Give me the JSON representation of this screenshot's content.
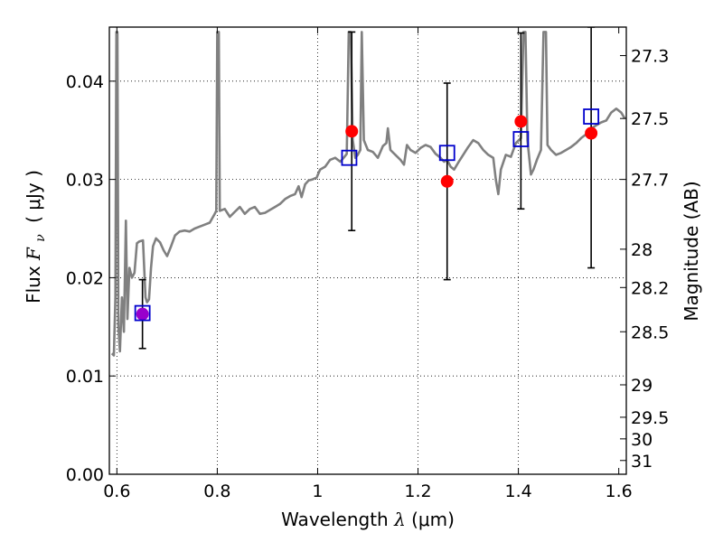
{
  "chart_data": {
    "type": "scatter",
    "xlabel_prefix": "Wavelength",
    "xlabel_symbol": "λ",
    "xlabel_unit": "(μm)",
    "ylabel_prefix": "Flux",
    "ylabel_symbol": "F",
    "ylabel_subscript": "ν",
    "ylabel_unit": "( μJy )",
    "y2label": "Magnitude (AB)",
    "xlim": [
      0.585,
      1.615
    ],
    "ylim": [
      0.0,
      0.0455
    ],
    "x_ticks": [
      0.6,
      0.8,
      1.0,
      1.2,
      1.4,
      1.6
    ],
    "x_tick_labels": [
      "0.6",
      "0.8",
      "1",
      "1.2",
      "1.4",
      "1.6"
    ],
    "y_ticks": [
      0.0,
      0.01,
      0.02,
      0.03,
      0.04
    ],
    "y_tick_labels": [
      "0.00",
      "0.01",
      "0.02",
      "0.03",
      "0.04"
    ],
    "y2_ticks": [
      {
        "flux": 0.0426,
        "label": "27.3"
      },
      {
        "flux": 0.0362,
        "label": "27.5"
      },
      {
        "flux": 0.03,
        "label": "27.7"
      },
      {
        "flux": 0.0229,
        "label": "28"
      },
      {
        "flux": 0.019,
        "label": "28.2"
      },
      {
        "flux": 0.0145,
        "label": "28.5"
      },
      {
        "flux": 0.0091,
        "label": "29"
      },
      {
        "flux": 0.0058,
        "label": "29.5"
      },
      {
        "flux": 0.0036,
        "label": "30"
      },
      {
        "flux": 0.0014,
        "label": "31"
      }
    ],
    "grid": true,
    "colors": {
      "spectrum": "#808080",
      "observed": "#ff0000",
      "model": "#0000cc",
      "errorbar": "#000000",
      "special_point": "#9900cc"
    },
    "series": [
      {
        "name": "model spectrum",
        "kind": "line",
        "points": [
          [
            0.59,
            0.0123
          ],
          [
            0.594,
            0.0121
          ],
          [
            0.597,
            0.018
          ],
          [
            0.599,
            0.045
          ],
          [
            0.601,
            0.045
          ],
          [
            0.603,
            0.015
          ],
          [
            0.606,
            0.0125
          ],
          [
            0.61,
            0.018
          ],
          [
            0.614,
            0.0145
          ],
          [
            0.618,
            0.0258
          ],
          [
            0.621,
            0.0158
          ],
          [
            0.625,
            0.021
          ],
          [
            0.63,
            0.02
          ],
          [
            0.635,
            0.0205
          ],
          [
            0.64,
            0.0235
          ],
          [
            0.645,
            0.0237
          ],
          [
            0.652,
            0.0238
          ],
          [
            0.657,
            0.018
          ],
          [
            0.66,
            0.0175
          ],
          [
            0.664,
            0.0178
          ],
          [
            0.668,
            0.021
          ],
          [
            0.672,
            0.0232
          ],
          [
            0.678,
            0.024
          ],
          [
            0.686,
            0.0236
          ],
          [
            0.693,
            0.0228
          ],
          [
            0.7,
            0.0222
          ],
          [
            0.708,
            0.0232
          ],
          [
            0.716,
            0.0243
          ],
          [
            0.725,
            0.0247
          ],
          [
            0.735,
            0.0248
          ],
          [
            0.745,
            0.0247
          ],
          [
            0.755,
            0.025
          ],
          [
            0.765,
            0.0252
          ],
          [
            0.775,
            0.0254
          ],
          [
            0.785,
            0.0256
          ],
          [
            0.795,
            0.0265
          ],
          [
            0.798,
            0.0268
          ],
          [
            0.8,
            0.045
          ],
          [
            0.803,
            0.045
          ],
          [
            0.805,
            0.0268
          ],
          [
            0.815,
            0.027
          ],
          [
            0.825,
            0.0262
          ],
          [
            0.835,
            0.0267
          ],
          [
            0.845,
            0.0272
          ],
          [
            0.855,
            0.0265
          ],
          [
            0.865,
            0.027
          ],
          [
            0.875,
            0.0272
          ],
          [
            0.885,
            0.0265
          ],
          [
            0.895,
            0.0266
          ],
          [
            0.905,
            0.0269
          ],
          [
            0.915,
            0.0272
          ],
          [
            0.925,
            0.0275
          ],
          [
            0.935,
            0.028
          ],
          [
            0.945,
            0.0283
          ],
          [
            0.955,
            0.0285
          ],
          [
            0.962,
            0.0293
          ],
          [
            0.968,
            0.0282
          ],
          [
            0.975,
            0.0295
          ],
          [
            0.982,
            0.0299
          ],
          [
            0.99,
            0.03
          ],
          [
            0.998,
            0.0302
          ],
          [
            1.005,
            0.031
          ],
          [
            1.015,
            0.0313
          ],
          [
            1.025,
            0.032
          ],
          [
            1.035,
            0.0322
          ],
          [
            1.045,
            0.0318
          ],
          [
            1.052,
            0.0322
          ],
          [
            1.058,
            0.0326
          ],
          [
            1.062,
            0.045
          ],
          [
            1.066,
            0.045
          ],
          [
            1.07,
            0.034
          ],
          [
            1.075,
            0.0322
          ],
          [
            1.08,
            0.0325
          ],
          [
            1.085,
            0.033
          ],
          [
            1.088,
            0.045
          ],
          [
            1.092,
            0.034
          ],
          [
            1.1,
            0.033
          ],
          [
            1.11,
            0.0328
          ],
          [
            1.12,
            0.0322
          ],
          [
            1.13,
            0.0334
          ],
          [
            1.137,
            0.0337
          ],
          [
            1.14,
            0.0352
          ],
          [
            1.145,
            0.033
          ],
          [
            1.155,
            0.0325
          ],
          [
            1.165,
            0.032
          ],
          [
            1.172,
            0.0315
          ],
          [
            1.178,
            0.0335
          ],
          [
            1.185,
            0.033
          ],
          [
            1.195,
            0.0327
          ],
          [
            1.205,
            0.0332
          ],
          [
            1.215,
            0.0335
          ],
          [
            1.225,
            0.0333
          ],
          [
            1.235,
            0.0326
          ],
          [
            1.245,
            0.0322
          ],
          [
            1.252,
            0.0318
          ],
          [
            1.258,
            0.032
          ],
          [
            1.265,
            0.0313
          ],
          [
            1.272,
            0.031
          ],
          [
            1.28,
            0.0317
          ],
          [
            1.29,
            0.0325
          ],
          [
            1.3,
            0.0333
          ],
          [
            1.31,
            0.034
          ],
          [
            1.32,
            0.0337
          ],
          [
            1.33,
            0.033
          ],
          [
            1.34,
            0.0325
          ],
          [
            1.35,
            0.0322
          ],
          [
            1.355,
            0.03
          ],
          [
            1.36,
            0.0285
          ],
          [
            1.365,
            0.031
          ],
          [
            1.375,
            0.0325
          ],
          [
            1.385,
            0.0323
          ],
          [
            1.395,
            0.0337
          ],
          [
            1.405,
            0.0342
          ],
          [
            1.41,
            0.045
          ],
          [
            1.414,
            0.045
          ],
          [
            1.418,
            0.034
          ],
          [
            1.425,
            0.0305
          ],
          [
            1.43,
            0.031
          ],
          [
            1.437,
            0.032
          ],
          [
            1.445,
            0.033
          ],
          [
            1.45,
            0.045
          ],
          [
            1.455,
            0.045
          ],
          [
            1.458,
            0.0335
          ],
          [
            1.465,
            0.033
          ],
          [
            1.475,
            0.0325
          ],
          [
            1.485,
            0.0327
          ],
          [
            1.495,
            0.033
          ],
          [
            1.505,
            0.0333
          ],
          [
            1.515,
            0.0337
          ],
          [
            1.525,
            0.0342
          ],
          [
            1.535,
            0.0346
          ],
          [
            1.545,
            0.0352
          ],
          [
            1.555,
            0.0355
          ],
          [
            1.565,
            0.0358
          ],
          [
            1.575,
            0.036
          ],
          [
            1.585,
            0.0368
          ],
          [
            1.595,
            0.0372
          ],
          [
            1.605,
            0.0368
          ],
          [
            1.612,
            0.0362
          ]
        ]
      },
      {
        "name": "observed flux",
        "kind": "errorbar",
        "points": [
          {
            "x": 1.068,
            "y": 0.0349,
            "ylow": 0.0248,
            "yhigh": 0.045
          },
          {
            "x": 1.258,
            "y": 0.0298,
            "ylow": 0.0198,
            "yhigh": 0.0398
          },
          {
            "x": 1.405,
            "y": 0.0359,
            "ylow": 0.027,
            "yhigh": 0.0449
          },
          {
            "x": 1.545,
            "y": 0.0347,
            "ylow": 0.021,
            "yhigh": 0.0455
          }
        ]
      },
      {
        "name": "optical detection",
        "kind": "errorbar",
        "points": [
          {
            "x": 0.651,
            "y": 0.0163,
            "ylow": 0.0128,
            "yhigh": 0.0198
          }
        ]
      },
      {
        "name": "model synthetic photometry",
        "kind": "square",
        "points": [
          {
            "x": 0.651,
            "y": 0.0164
          },
          {
            "x": 1.063,
            "y": 0.0322
          },
          {
            "x": 1.258,
            "y": 0.0327
          },
          {
            "x": 1.405,
            "y": 0.0341
          },
          {
            "x": 1.545,
            "y": 0.0364
          }
        ]
      }
    ]
  }
}
